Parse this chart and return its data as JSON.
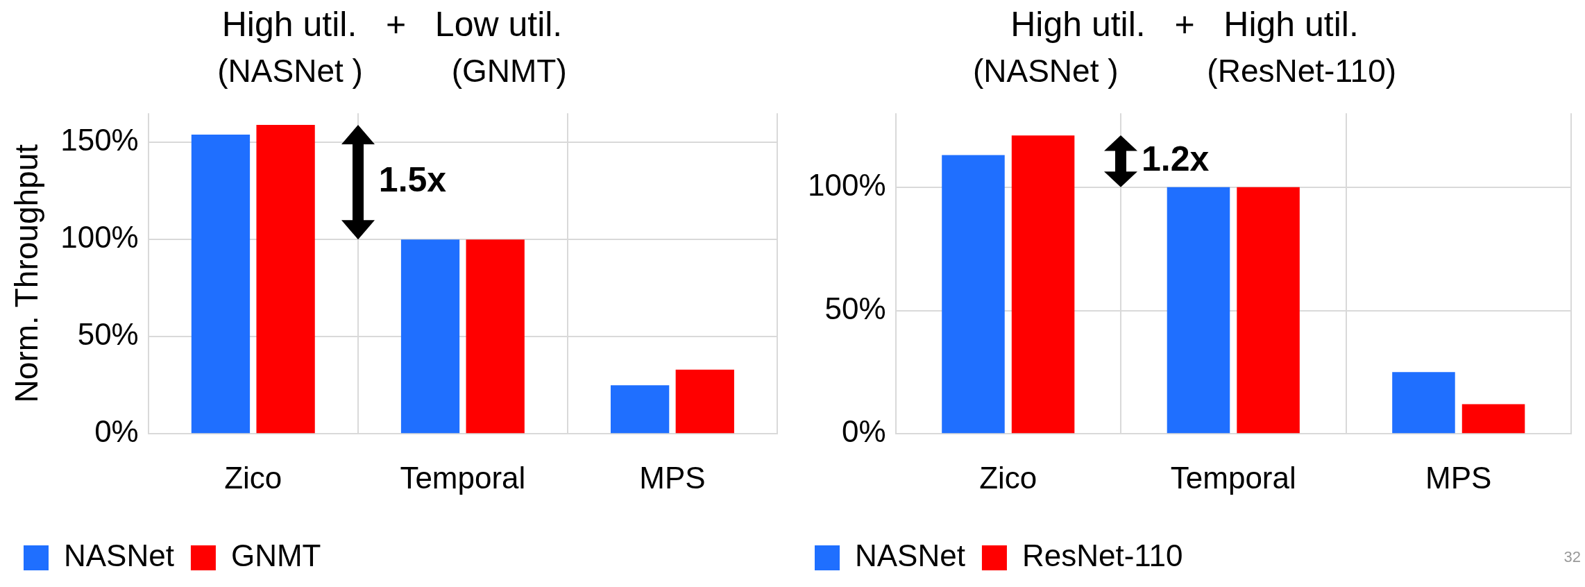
{
  "chart_data": [
    {
      "type": "bar",
      "title": "High util.   +   Low util.",
      "subtitle": "(NASNet )          (GNMT)",
      "ylabel": "Norm. Throughput",
      "categories": [
        "Zico",
        "Temporal",
        "MPS"
      ],
      "series": [
        {
          "name": "NASNet",
          "color": "#1f6fff",
          "values": [
            154,
            100,
            25
          ]
        },
        {
          "name": "GNMT",
          "color": "#ff0000",
          "values": [
            159,
            100,
            33
          ]
        }
      ],
      "ylim": [
        0,
        165
      ],
      "yticks": [
        {
          "value": 0,
          "label": "0%"
        },
        {
          "value": 50,
          "label": "50%"
        },
        {
          "value": 100,
          "label": "100%"
        },
        {
          "value": 150,
          "label": "150%"
        }
      ],
      "grid": true,
      "legend": "bottom left",
      "annotations": [
        "1.5x"
      ]
    },
    {
      "type": "bar",
      "title": "High util.   +   High util.",
      "subtitle": "(NASNet )          (ResNet-110)",
      "categories": [
        "Zico",
        "Temporal",
        "MPS"
      ],
      "series": [
        {
          "name": "NASNet",
          "color": "#1f6fff",
          "values": [
            113,
            100,
            25
          ]
        },
        {
          "name": "ResNet-110",
          "color": "#ff0000",
          "values": [
            121,
            100,
            12
          ]
        }
      ],
      "ylim": [
        0,
        130
      ],
      "yticks": [
        {
          "value": 0,
          "label": "0%"
        },
        {
          "value": 50,
          "label": "50%"
        },
        {
          "value": 100,
          "label": "100%"
        }
      ],
      "grid": true,
      "legend": "bottom left",
      "annotations": [
        "1.2x",
        "32"
      ]
    }
  ]
}
